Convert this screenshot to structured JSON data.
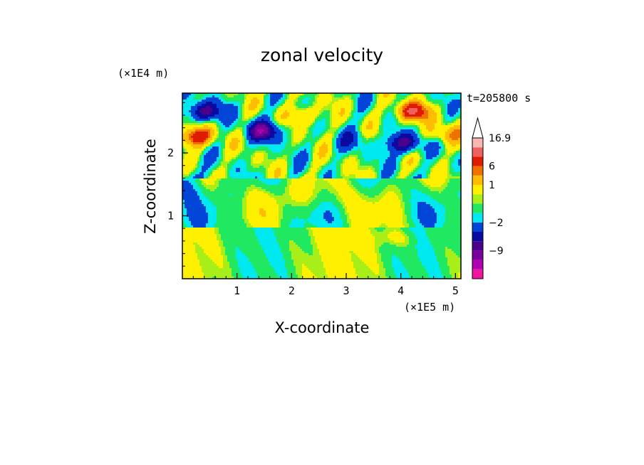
{
  "chart_data": {
    "type": "heatmap",
    "title": "zonal velocity",
    "xlabel": "X-coordinate",
    "ylabel": "Z-coordinate",
    "x_unit": "(×1E5 m)",
    "y_unit": "(×1E4 m)",
    "time_label": "t=205800 s",
    "xlim": [
      0,
      5.1
    ],
    "ylim": [
      0,
      2.95
    ],
    "x_ticks": [
      "1",
      "2",
      "3",
      "4",
      "5"
    ],
    "y_ticks": [
      "1",
      "2"
    ],
    "colorbar": {
      "levels": [
        {
          "color": "#f0149f",
          "label": ""
        },
        {
          "color": "#b000b0",
          "label": ""
        },
        {
          "color": "#7a009e",
          "label": "−9"
        },
        {
          "color": "#4a008a",
          "label": ""
        },
        {
          "color": "#0a0aa0",
          "label": ""
        },
        {
          "color": "#0044d8",
          "label": "−2"
        },
        {
          "color": "#00e8f0",
          "label": ""
        },
        {
          "color": "#20e860",
          "label": ""
        },
        {
          "color": "#a8ee18",
          "label": ""
        },
        {
          "color": "#fff000",
          "label": "1"
        },
        {
          "color": "#ffbc00",
          "label": ""
        },
        {
          "color": "#f07000",
          "label": "6"
        },
        {
          "color": "#e01c00",
          "label": ""
        },
        {
          "color": "#f06060",
          "label": ""
        },
        {
          "color": "#f8b8b0",
          "label": "16.9"
        }
      ],
      "overflow_color": "#ffffff"
    },
    "features": [
      {
        "x": 0.4,
        "z": 2.65,
        "value": -6
      },
      {
        "x": 1.5,
        "z": 2.35,
        "value": -6
      },
      {
        "x": 4.05,
        "z": 2.15,
        "value": -6
      },
      {
        "x": 4.2,
        "z": 2.65,
        "value": 6
      },
      {
        "x": 0.25,
        "z": 2.25,
        "value": 6
      },
      {
        "x": 2.25,
        "z": 2.6,
        "value": 3
      },
      {
        "x": 3.1,
        "z": 2.2,
        "value": -2
      },
      {
        "x": 4.75,
        "z": 2.3,
        "value": 3
      }
    ]
  }
}
